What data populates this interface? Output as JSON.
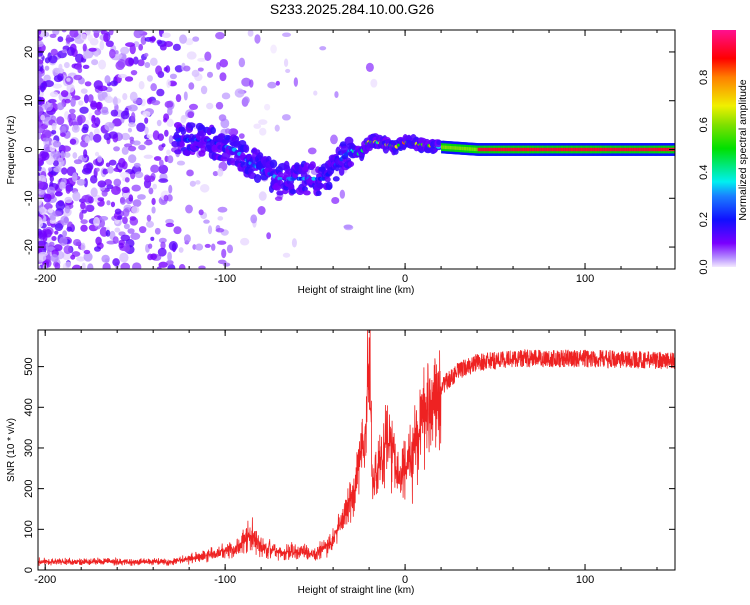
{
  "chart_data": [
    {
      "type": "heatmap",
      "title": "S233.2025.284.10.00.G26",
      "xlabel": "Height of straight line (km)",
      "ylabel": "Frequency (Hz)",
      "xlim": [
        -204,
        150
      ],
      "ylim": [
        -24.5,
        24.5
      ],
      "xticks": [
        -200,
        -100,
        0,
        100
      ],
      "yticks": [
        -20,
        -10,
        0,
        10,
        20
      ],
      "colorbar": {
        "label": "Normalized spectral amplitude",
        "range": [
          0,
          1
        ],
        "ticks": [
          "0.0",
          "0.2",
          "0.4",
          "0.6",
          "0.8"
        ]
      },
      "ridge": {
        "x": [
          -125,
          -110,
          -95,
          -85,
          -70,
          -55,
          -45,
          -38,
          -30,
          -25,
          -20,
          -15,
          -10,
          -5,
          0,
          10,
          20,
          40,
          150
        ],
        "freq": [
          2,
          2,
          0,
          -3,
          -6,
          -6,
          -6,
          -3,
          0,
          -1,
          1.5,
          1.5,
          1,
          0.5,
          1.5,
          1,
          0.5,
          0,
          0
        ],
        "amplitude": [
          0.25,
          0.25,
          0.3,
          0.3,
          0.3,
          0.35,
          0.3,
          0.25,
          0.35,
          0.45,
          0.7,
          0.8,
          0.7,
          0.8,
          0.8,
          0.9,
          0.5,
          0.92,
          0.92
        ]
      }
    },
    {
      "type": "line",
      "xlabel": "Height of straight line (km)",
      "ylabel": "SNR (10 * v/v)",
      "xlim": [
        -204,
        150
      ],
      "ylim": [
        0,
        590
      ],
      "xticks": [
        -200,
        -100,
        0,
        100
      ],
      "yticks": [
        0,
        100,
        200,
        300,
        400,
        500
      ],
      "color": "#ee2222",
      "series": [
        {
          "name": "SNR",
          "x": [
            -204,
            -130,
            -110,
            -95,
            -85,
            -80,
            -70,
            -50,
            -42,
            -35,
            -28,
            -22,
            -20,
            -18,
            -12,
            -8,
            -5,
            0,
            5,
            10,
            20,
            30,
            40,
            60,
            100,
            150
          ],
          "y": [
            20,
            20,
            35,
            55,
            90,
            60,
            45,
            40,
            60,
            120,
            200,
            350,
            550,
            200,
            300,
            320,
            250,
            250,
            300,
            380,
            450,
            490,
            510,
            520,
            520,
            515
          ]
        }
      ]
    }
  ]
}
